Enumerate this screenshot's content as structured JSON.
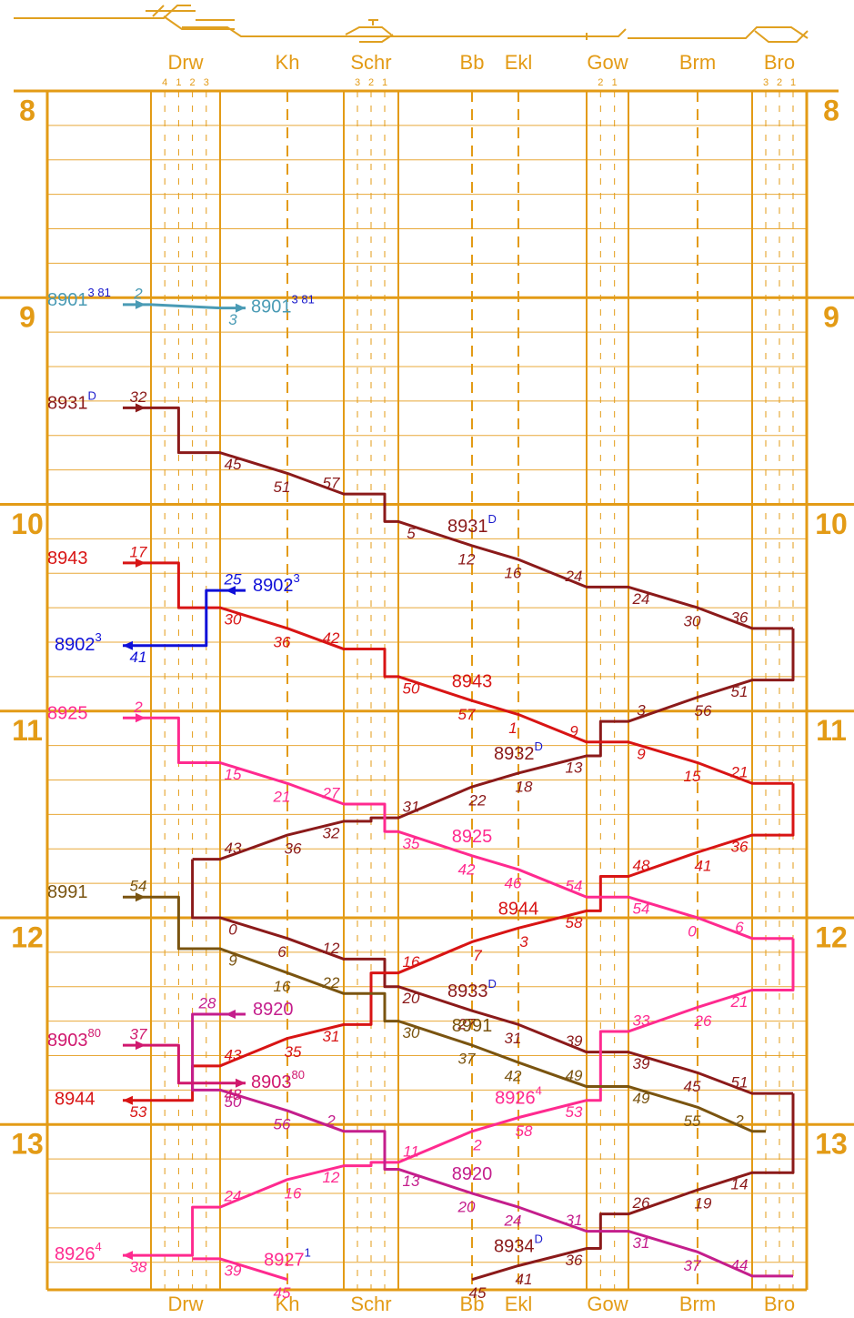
{
  "chart_data": {
    "type": "train_graph",
    "stations": [
      {
        "name": "Drw",
        "tracks": [
          "4",
          "1",
          "2",
          "3"
        ]
      },
      {
        "name": "Kh",
        "tracks": []
      },
      {
        "name": "Schr",
        "tracks": [
          "3",
          "2",
          "1"
        ]
      },
      {
        "name": "Bb",
        "tracks": []
      },
      {
        "name": "Ekl",
        "tracks": []
      },
      {
        "name": "Gow",
        "tracks": [
          "2",
          "1"
        ]
      },
      {
        "name": "Brm",
        "tracks": []
      },
      {
        "name": "Bro",
        "tracks": [
          "3",
          "2",
          "1"
        ]
      }
    ],
    "ylim": [
      8,
      13.8
    ],
    "yticks": [
      8,
      9,
      10,
      11,
      12,
      13
    ],
    "circulations": [
      {
        "color": "#8b1a1a",
        "trains": [
          {
            "name": "8931",
            "sup": "D",
            "sup_color": "#1a1acc",
            "labels": [
              "start",
              "mid"
            ],
            "points": [
              {
                "at": "Drw-w",
                "h": 9,
                "m": 32,
                "via": "Drw-1"
              },
              {
                "pre": "Drw-1",
                "at": "Drw-e",
                "h": 9,
                "m": 45
              },
              {
                "at": "Kh",
                "h": 9,
                "m": 51
              },
              {
                "at": "Schr-w",
                "h": 9,
                "m": 57,
                "via": "Schr-1"
              },
              {
                "pre": "Schr-1",
                "at": "Schr-e",
                "h": 10,
                "m": 5
              },
              {
                "at": "Bb",
                "h": 10,
                "m": 12
              },
              {
                "at": "Ekl",
                "h": 10,
                "m": 16
              },
              {
                "at": "Gow-w",
                "h": 10,
                "m": 24
              },
              {
                "at": "Gow-e",
                "h": 10,
                "m": 24
              },
              {
                "at": "Brm",
                "h": 10,
                "m": 30
              },
              {
                "at": "Bro-w",
                "h": 10,
                "m": 36,
                "via": "Bro-1"
              }
            ]
          },
          {
            "name": "8932",
            "sup": "D",
            "sup_color": "#1a1acc",
            "labels": [
              "mid"
            ],
            "points": [
              {
                "pre": "Bro-1",
                "at": "Bro-w",
                "h": 10,
                "m": 51
              },
              {
                "at": "Brm",
                "h": 10,
                "m": 56
              },
              {
                "at": "Gow-e",
                "h": 11,
                "m": 3,
                "via": "Gow-2"
              },
              {
                "pre": "Gow-2",
                "at": "Gow-w",
                "h": 11,
                "m": 13
              },
              {
                "at": "Ekl",
                "h": 11,
                "m": 18
              },
              {
                "at": "Bb",
                "h": 11,
                "m": 22
              },
              {
                "at": "Schr-e",
                "h": 11,
                "m": 31,
                "via": "Schr-2"
              },
              {
                "pre": "Schr-2",
                "at": "Schr-w",
                "h": 11,
                "m": 32
              },
              {
                "at": "Kh",
                "h": 11,
                "m": 36
              },
              {
                "at": "Drw-e",
                "h": 11,
                "m": 43,
                "via": "Drw-2"
              }
            ]
          },
          {
            "name": "8933",
            "sup": "D",
            "sup_color": "#1a1acc",
            "labels": [
              "mid"
            ],
            "points": [
              {
                "pre": "Drw-2",
                "at": "Drw-e",
                "h": 12,
                "m": 0
              },
              {
                "at": "Kh",
                "h": 12,
                "m": 6
              },
              {
                "at": "Schr-w",
                "h": 12,
                "m": 12,
                "via": "Schr-1"
              },
              {
                "pre": "Schr-1",
                "at": "Schr-e",
                "h": 12,
                "m": 20
              },
              {
                "at": "Bb",
                "h": 12,
                "m": 27
              },
              {
                "at": "Ekl",
                "h": 12,
                "m": 31
              },
              {
                "at": "Gow-w",
                "h": 12,
                "m": 39
              },
              {
                "at": "Gow-e",
                "h": 12,
                "m": 39
              },
              {
                "at": "Brm",
                "h": 12,
                "m": 45
              },
              {
                "at": "Bro-w",
                "h": 12,
                "m": 51,
                "via": "Bro-1"
              }
            ]
          },
          {
            "name": "8934",
            "sup": "D",
            "sup_color": "#1a1acc",
            "labels": [
              "mid"
            ],
            "points": [
              {
                "pre": "Bro-1",
                "at": "Bro-w",
                "h": 13,
                "m": 14
              },
              {
                "at": "Brm",
                "h": 13,
                "m": 19
              },
              {
                "at": "Gow-e",
                "h": 13,
                "m": 26,
                "via": "Gow-2"
              },
              {
                "pre": "Gow-2",
                "at": "Gow-w",
                "h": 13,
                "m": 36
              },
              {
                "at": "Ekl",
                "h": 13,
                "m": 41
              },
              {
                "at": "Bb",
                "h": 13,
                "m": 45
              }
            ]
          }
        ]
      },
      {
        "color": "#d81414",
        "trains": [
          {
            "name": "8943",
            "sup": "",
            "sup_color": "#d81414",
            "labels": [
              "start",
              "mid"
            ],
            "points": [
              {
                "at": "Drw-w",
                "h": 10,
                "m": 17,
                "via": "Drw-1"
              },
              {
                "pre": "Drw-1",
                "at": "Drw-e",
                "h": 10,
                "m": 30
              },
              {
                "at": "Kh",
                "h": 10,
                "m": 36
              },
              {
                "at": "Schr-w",
                "h": 10,
                "m": 42,
                "via": "Schr-1"
              },
              {
                "pre": "Schr-1",
                "at": "Schr-e",
                "h": 10,
                "m": 50
              },
              {
                "at": "Bb",
                "h": 10,
                "m": 57
              },
              {
                "at": "Ekl",
                "h": 11,
                "m": 1
              },
              {
                "at": "Gow-w",
                "h": 11,
                "m": 9
              },
              {
                "at": "Gow-e",
                "h": 11,
                "m": 9
              },
              {
                "at": "Brm",
                "h": 11,
                "m": 15
              },
              {
                "at": "Bro-w",
                "h": 11,
                "m": 21,
                "via": "Bro-1"
              }
            ]
          },
          {
            "name": "8944",
            "sup": "",
            "sup_color": "#d81414",
            "labels": [
              "mid",
              "end"
            ],
            "points": [
              {
                "pre": "Bro-1",
                "at": "Bro-w",
                "h": 11,
                "m": 36
              },
              {
                "at": "Brm",
                "h": 11,
                "m": 41
              },
              {
                "at": "Gow-e",
                "h": 11,
                "m": 48,
                "via": "Gow-2"
              },
              {
                "pre": "Gow-2",
                "at": "Gow-w",
                "h": 11,
                "m": 58
              },
              {
                "at": "Ekl",
                "h": 12,
                "m": 3
              },
              {
                "at": "Bb",
                "h": 12,
                "m": 7
              },
              {
                "at": "Schr-e",
                "h": 12,
                "m": 16,
                "via": "Schr-2"
              },
              {
                "pre": "Schr-2",
                "at": "Schr-w",
                "h": 12,
                "m": 31
              },
              {
                "at": "Kh",
                "h": 12,
                "m": 35
              },
              {
                "at": "Drw-e",
                "h": 12,
                "m": 43,
                "via": "Drw-2"
              },
              {
                "pre": "Drw-2",
                "at": "Drw-w",
                "h": 12,
                "m": 53
              }
            ]
          }
        ]
      },
      {
        "color": "#ff2a8f",
        "trains": [
          {
            "name": "8925",
            "sup": "",
            "sup_color": "#ff2a8f",
            "labels": [
              "start",
              "mid"
            ],
            "points": [
              {
                "at": "Drw-w",
                "h": 11,
                "m": 2,
                "via": "Drw-1"
              },
              {
                "pre": "Drw-1",
                "at": "Drw-e",
                "h": 11,
                "m": 15
              },
              {
                "at": "Kh",
                "h": 11,
                "m": 21
              },
              {
                "at": "Schr-w",
                "h": 11,
                "m": 27,
                "via": "Schr-1"
              },
              {
                "pre": "Schr-1",
                "at": "Schr-e",
                "h": 11,
                "m": 35
              },
              {
                "at": "Bb",
                "h": 11,
                "m": 42
              },
              {
                "at": "Ekl",
                "h": 11,
                "m": 46
              },
              {
                "at": "Gow-w",
                "h": 11,
                "m": 54
              },
              {
                "at": "Gow-e",
                "h": 11,
                "m": 54
              },
              {
                "at": "Brm",
                "h": 12,
                "m": 0
              },
              {
                "at": "Bro-w",
                "h": 12,
                "m": 6,
                "via": "Bro-1"
              }
            ]
          },
          {
            "name": "8926",
            "sup": "4",
            "sup_color": "#ff2a8f",
            "labels": [
              "mid",
              "end"
            ],
            "points": [
              {
                "pre": "Bro-1",
                "at": "Bro-w",
                "h": 12,
                "m": 21
              },
              {
                "at": "Brm",
                "h": 12,
                "m": 26
              },
              {
                "at": "Gow-e",
                "h": 12,
                "m": 33,
                "via": "Gow-2"
              },
              {
                "pre": "Gow-2",
                "at": "Gow-w",
                "h": 12,
                "m": 53
              },
              {
                "at": "Ekl",
                "h": 12,
                "m": 58
              },
              {
                "at": "Bb",
                "h": 13,
                "m": 2
              },
              {
                "at": "Schr-e",
                "h": 13,
                "m": 11,
                "via": "Schr-2"
              },
              {
                "pre": "Schr-2",
                "at": "Schr-w",
                "h": 13,
                "m": 12
              },
              {
                "at": "Kh",
                "h": 13,
                "m": 16
              },
              {
                "at": "Drw-e",
                "h": 13,
                "m": 24,
                "via": "Drw-2"
              },
              {
                "pre": "Drw-2",
                "at": "Drw-w",
                "h": 13,
                "m": 38
              }
            ]
          }
        ]
      },
      {
        "color": "#ff2a8f",
        "trains": [
          {
            "name": "8927",
            "sup": "1",
            "sup_color": "#1a1acc",
            "labels": [
              "mid"
            ],
            "points": [
              {
                "pre": "Drw-2",
                "at": "Drw-e",
                "h": 13,
                "m": 39
              },
              {
                "at": "Kh",
                "h": 13,
                "m": 45
              }
            ]
          }
        ]
      },
      {
        "color": "#c41e8c",
        "trains": [
          {
            "name": "8920",
            "sup": "",
            "sup_color": "#c41e8c",
            "labels": [
              "start",
              "mid"
            ],
            "points": [
              {
                "at": "Drw-e",
                "h": 12,
                "m": 28,
                "via": "Drw-2"
              },
              {
                "pre": "Drw-2",
                "at": "Drw-e",
                "h": 12,
                "m": 50
              },
              {
                "at": "Kh",
                "h": 12,
                "m": 56
              },
              {
                "at": "Schr-w",
                "h": 13,
                "m": 2,
                "via": "Schr-1"
              },
              {
                "pre": "Schr-1",
                "at": "Schr-e",
                "h": 13,
                "m": 13
              },
              {
                "at": "Bb",
                "h": 13,
                "m": 20
              },
              {
                "at": "Ekl",
                "h": 13,
                "m": 24
              },
              {
                "at": "Gow-w",
                "h": 13,
                "m": 31
              },
              {
                "at": "Gow-e",
                "h": 13,
                "m": 31
              },
              {
                "at": "Brm",
                "h": 13,
                "m": 37
              },
              {
                "at": "Bro-w",
                "h": 13,
                "m": 44,
                "via": "Bro-1"
              }
            ]
          }
        ]
      },
      {
        "color": "#d0186e",
        "trains": [
          {
            "name": "8903",
            "sup": "80",
            "sup_color": "#d0186e",
            "labels": [
              "start",
              "end"
            ],
            "points": [
              {
                "at": "Drw-w",
                "h": 12,
                "m": 37,
                "via": "Drw-1"
              },
              {
                "pre": "Drw-1",
                "at": "Drw-e",
                "h": 12,
                "m": 48
              }
            ]
          }
        ]
      },
      {
        "color": "#7a5410",
        "trains": [
          {
            "name": "8991",
            "sup": "",
            "sup_color": "#7a5410",
            "labels": [
              "start",
              "mid"
            ],
            "points": [
              {
                "at": "Drw-w",
                "h": 11,
                "m": 54,
                "via": "Drw-1"
              },
              {
                "pre": "Drw-1",
                "at": "Drw-e",
                "h": 12,
                "m": 9
              },
              {
                "at": "Kh",
                "h": 12,
                "m": 16
              },
              {
                "at": "Schr-w",
                "h": 12,
                "m": 22,
                "via": "Schr-1"
              },
              {
                "pre": "Schr-1",
                "at": "Schr-e",
                "h": 12,
                "m": 30
              },
              {
                "at": "Bb",
                "h": 12,
                "m": 37
              },
              {
                "at": "Ekl",
                "h": 12,
                "m": 42
              },
              {
                "at": "Gow-w",
                "h": 12,
                "m": 49
              },
              {
                "at": "Gow-e",
                "h": 12,
                "m": 49
              },
              {
                "at": "Brm",
                "h": 12,
                "m": 55
              },
              {
                "at": "Bro-w",
                "h": 13,
                "m": 2,
                "via": "Bro-3"
              }
            ]
          }
        ]
      },
      {
        "color": "#4a9bb5",
        "trains": [
          {
            "name": "8901",
            "sup": "3 81",
            "sup_color": "#1a1acc",
            "labels": [
              "start",
              "end"
            ],
            "points": [
              {
                "at": "Drw-w",
                "h": 9,
                "m": 2
              },
              {
                "at": "Drw-e",
                "h": 9,
                "m": 3
              }
            ]
          }
        ]
      },
      {
        "color": "#1010d8",
        "trains": [
          {
            "name": "8902",
            "sup": "3",
            "sup_color": "#1010d8",
            "labels": [
              "start",
              "end"
            ],
            "points": [
              {
                "at": "Drw-e",
                "h": 10,
                "m": 25,
                "via": "Drw-3"
              },
              {
                "pre": "Drw-3",
                "at": "Drw-w",
                "h": 10,
                "m": 41
              }
            ]
          }
        ]
      }
    ]
  }
}
